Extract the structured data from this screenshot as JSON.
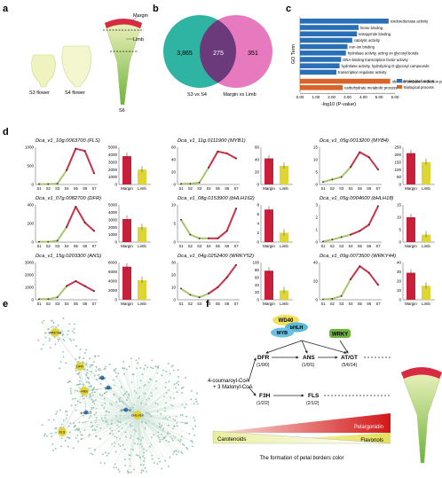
{
  "panels": {
    "a": "a",
    "b": "b",
    "c": "c",
    "d": "d",
    "e": "e",
    "f": "f"
  },
  "panel_a": {
    "flowers": [
      "S3 flower",
      "S4 flower",
      "S6"
    ],
    "labels": [
      "Margin",
      "Limb"
    ]
  },
  "panel_b": {
    "left_only": "3,865",
    "overlap": "275",
    "right_only": "351",
    "left_label": "S3 vs S4",
    "right_label": "Margin vs Limb"
  },
  "chart_data": [
    {
      "type": "bar",
      "panel": "c",
      "ylabel": "GO Term",
      "xlabel": "-log10 (P-value)",
      "xlim": [
        0,
        6
      ],
      "categories": [
        "oxidoreductase activity",
        "heme binding",
        "tetrapyrrole binding",
        "catalytic activity",
        "iron ion binding",
        "hydrolase activity, acting on glycosyl bonds",
        "DNA-binding transcription factor activity",
        "hydrolase activity, hydrolyzing O-glycosyl compounds",
        "transcription regulator activity",
        "obsolete oxidation-reduction process",
        "carbohydrate metabolic process"
      ],
      "values": [
        5.6,
        3.7,
        3.6,
        3.3,
        3.0,
        2.9,
        2.6,
        2.5,
        2.3,
        5.7,
        2.7
      ],
      "groups": [
        "Molecular function",
        "Molecular function",
        "Molecular function",
        "Molecular function",
        "Molecular function",
        "Molecular function",
        "Molecular function",
        "Molecular function",
        "Molecular function",
        "Biological process",
        "Biological process"
      ],
      "ticks": [
        "0.00",
        "1.00",
        "2.00",
        "3.00",
        "4.00",
        "5.00",
        "6.00"
      ],
      "legend": [
        {
          "name": "Molecular function",
          "color": "#2a6fb5"
        },
        {
          "name": "Biological process",
          "color": "#d9642a"
        }
      ]
    },
    {
      "type": "line",
      "panel": "d",
      "stages": [
        "S1",
        "S2",
        "S3",
        "S4",
        "S5",
        "S6",
        "S7"
      ],
      "bar_categories": [
        "Margin",
        "Limb"
      ],
      "genes": [
        {
          "title": "Dca_v1_10g.0063700 (FLS)",
          "yticks": [
            "0",
            "500",
            "1000"
          ],
          "ymax": 1000,
          "line": [
            10,
            10,
            20,
            380,
            960,
            900,
            300
          ],
          "bar_ticks": [
            "0",
            "1000",
            "2000",
            "3000",
            "4000",
            "5000"
          ],
          "bmax": 5000,
          "bars": [
            3800,
            2000
          ]
        },
        {
          "title": "Dca_v1_11g.0111900 (MYB1)",
          "yticks": [
            "0",
            "20",
            "40",
            "60"
          ],
          "ymax": 60,
          "line": [
            1,
            1,
            3,
            27,
            53,
            50,
            42
          ],
          "bar_ticks": [
            "0",
            "20",
            "40",
            "60"
          ],
          "bmax": 60,
          "bars": [
            42,
            30
          ]
        },
        {
          "title": "Dca_v1_05g.0013200 (MYB4)",
          "yticks": [
            "0",
            "5",
            "10",
            "15"
          ],
          "ymax": 15,
          "line": [
            1,
            2,
            3,
            7,
            13,
            11,
            6
          ],
          "bar_ticks": [
            "0",
            "50",
            "100",
            "150",
            "200",
            "250"
          ],
          "bmax": 250,
          "bars": [
            210,
            150
          ]
        },
        {
          "title": "Dca_v1_07g.0082700 (DFR)",
          "yticks": [
            "0",
            "200",
            "400"
          ],
          "ymax": 400,
          "line": [
            3,
            3,
            15,
            160,
            380,
            210,
            120
          ],
          "bar_ticks": [
            "0",
            "1000",
            "2000",
            "3000",
            "4000",
            "5000"
          ],
          "bmax": 5000,
          "bars": [
            3100,
            2000
          ]
        },
        {
          "title": "Dca_v1_08g.0153900 (bHLH162)",
          "yticks": [
            "0",
            "5",
            "10"
          ],
          "ymax": 10,
          "line": [
            6,
            2,
            1,
            1,
            1,
            3,
            9
          ],
          "bar_ticks": [
            "0",
            "2",
            "4",
            "6",
            "8"
          ],
          "bmax": 8,
          "bars": [
            7,
            2
          ]
        },
        {
          "title": "Dca_v1_05g.0004600 (bHLH18)",
          "yticks": [
            "0",
            "1",
            "2",
            "3"
          ],
          "ymax": 3,
          "line": [
            0.05,
            0.2,
            0.4,
            0.6,
            0.9,
            1.4,
            2.9
          ],
          "bar_ticks": [
            "0",
            "5",
            "10",
            "15"
          ],
          "bmax": 15,
          "bars": [
            10,
            3
          ]
        },
        {
          "title": "Dca_v1_15g.0203300 (ANS)",
          "yticks": [
            "0",
            "1000",
            "2000",
            "3000"
          ],
          "ymax": 3000,
          "line": [
            50,
            50,
            200,
            1100,
            1500,
            1100,
            700
          ],
          "bar_ticks": [
            "0",
            "2000",
            "4000",
            "6000",
            "8000"
          ],
          "bmax": 8000,
          "bars": [
            7100,
            4200
          ]
        },
        {
          "title": "Dca_v1_04g.0252400 (WRKY52)",
          "yticks": [
            "0",
            "10",
            "20",
            "30"
          ],
          "ymax": 30,
          "line": [
            9,
            4,
            2,
            5,
            10,
            18,
            28
          ],
          "bar_ticks": [
            "0",
            "20",
            "40",
            "60",
            "80",
            "100"
          ],
          "bmax": 100,
          "bars": [
            78,
            25
          ]
        },
        {
          "title": "Dca_v1_09g.0073500 (WRKY44)",
          "yticks": [
            "0",
            "20",
            "40"
          ],
          "ymax": 40,
          "line": [
            0.5,
            1,
            4,
            22,
            36,
            29,
            16
          ],
          "bar_ticks": [
            "0",
            "10",
            "20",
            "30",
            "40"
          ],
          "bmax": 40,
          "bars": [
            29,
            15
          ]
        }
      ]
    }
  ],
  "panel_e": {
    "hubs": [
      "WRKY44",
      "DFR",
      "ANS",
      "FLS",
      "bHLH162",
      "MYB1",
      "MYB4",
      "WRKY52",
      "bHLH18"
    ]
  },
  "panel_f": {
    "complex": [
      "WD40",
      "bHLH",
      "MYB",
      "WRKY"
    ],
    "substrate": "4-coumaroyl-CoA + 3 Malonyl-CoA",
    "genes": [
      {
        "name": "DFR",
        "count": "(1/0/0)"
      },
      {
        "name": "ANS",
        "count": "(1/0/1)"
      },
      {
        "name": "AT/GT",
        "count": "(5/6/14)"
      },
      {
        "name": "F3H",
        "count": "(1/2/2)"
      },
      {
        "name": "FLS",
        "count": "(2/1/2)"
      }
    ],
    "bands": [
      "Pelargonidin",
      "Flavonols",
      "Carotenoids"
    ],
    "caption": "The formation of petal borders color"
  }
}
